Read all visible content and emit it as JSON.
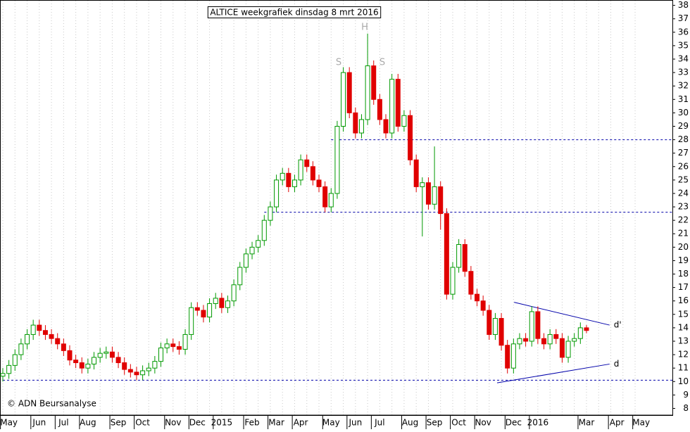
{
  "chart_data": {
    "type": "candlestick",
    "title": "ALTICE weekgrafiek dinsdag 8 mrt 2016",
    "categories": [
      null,
      "May",
      null,
      null,
      null,
      null,
      "Jun",
      null,
      null,
      null,
      "Jul",
      null,
      null,
      null,
      "Aug",
      null,
      null,
      null,
      null,
      "Sep",
      null,
      null,
      null,
      "Oct",
      null,
      null,
      null,
      null,
      "Nov",
      null,
      null,
      null,
      "Dec",
      null,
      null,
      null,
      "2015",
      null,
      null,
      null,
      null,
      "Feb",
      null,
      null,
      null,
      "Mar",
      null,
      null,
      null,
      "Apr",
      null,
      null,
      null,
      null,
      "May",
      null,
      null,
      null,
      "Jun",
      null,
      null,
      null,
      "Jul",
      null,
      null,
      null,
      null,
      "Aug",
      null,
      null,
      null,
      "Sep",
      null,
      null,
      null,
      "Oct",
      null,
      null,
      null,
      "Nov",
      null,
      null,
      null,
      null,
      "Dec",
      null,
      null,
      null,
      "2016",
      null,
      null,
      null,
      null,
      null,
      null,
      null,
      "Mar",
      null,
      null,
      null,
      null,
      "Apr",
      null,
      null,
      null,
      "May"
    ],
    "open": [
      10.4,
      10.6,
      11.2,
      12.0,
      12.8,
      13.5,
      14.2,
      13.8,
      13.5,
      13.2,
      12.8,
      12.3,
      11.6,
      11.4,
      11.0,
      11.3,
      11.8,
      12.1,
      12.2,
      11.8,
      11.4,
      10.9,
      10.7,
      10.5,
      10.8,
      11.0,
      11.5,
      12.5,
      12.8,
      12.6,
      12.4,
      13.5,
      15.5,
      15.3,
      14.8,
      15.8,
      16.2,
      15.5,
      16.0,
      17.2,
      18.5,
      19.5,
      20.0,
      20.5,
      22.0,
      23.0,
      25.0,
      25.5,
      24.5,
      25.0,
      26.5,
      26.0,
      25.0,
      24.5,
      23.0,
      24.0,
      29.0,
      33.0,
      30.0,
      28.5,
      29.5,
      33.5,
      31.0,
      29.5,
      28.5,
      32.5,
      29.0,
      29.8,
      26.5,
      24.5,
      24.8,
      23.2,
      24.5,
      22.5,
      16.5,
      18.5,
      20.2,
      18.2,
      16.5,
      16.0,
      15.3,
      13.5,
      14.7,
      12.7,
      11.0,
      12.8,
      13.2,
      13.0,
      15.2,
      13.2,
      12.8,
      13.5,
      13.2,
      11.8,
      13.0,
      13.2,
      14.0,
      null,
      null,
      null,
      null,
      null,
      null,
      null,
      null,
      null
    ],
    "high": [
      11.0,
      11.6,
      12.4,
      13.2,
      13.9,
      14.6,
      14.6,
      14.2,
      13.9,
      13.6,
      13.2,
      12.7,
      12.0,
      11.8,
      11.7,
      12.2,
      12.5,
      12.6,
      12.6,
      12.2,
      11.8,
      11.3,
      11.1,
      11.2,
      11.4,
      11.9,
      12.9,
      13.2,
      13.2,
      13.0,
      13.9,
      15.9,
      15.9,
      15.7,
      16.2,
      16.6,
      16.6,
      16.4,
      17.6,
      18.9,
      19.9,
      20.4,
      20.9,
      22.4,
      23.4,
      25.4,
      25.9,
      25.9,
      25.4,
      26.9,
      26.9,
      26.4,
      25.4,
      24.9,
      24.4,
      29.4,
      33.4,
      33.4,
      30.4,
      29.9,
      35.9,
      33.9,
      31.4,
      29.9,
      32.9,
      32.9,
      30.2,
      30.2,
      26.9,
      25.2,
      25.2,
      27.5,
      24.9,
      22.9,
      18.9,
      20.6,
      20.6,
      18.6,
      16.9,
      16.4,
      15.7,
      15.1,
      15.1,
      13.1,
      13.2,
      13.6,
      13.6,
      15.6,
      15.6,
      13.6,
      13.9,
      13.9,
      13.6,
      13.4,
      13.6,
      14.4,
      14.2,
      null,
      null,
      null,
      null,
      null,
      null,
      null,
      null,
      null
    ],
    "low": [
      10.0,
      10.2,
      10.8,
      11.6,
      12.4,
      13.1,
      13.4,
      13.1,
      12.8,
      12.4,
      11.9,
      11.2,
      11.0,
      10.6,
      10.6,
      10.9,
      11.4,
      11.7,
      11.4,
      11.0,
      10.5,
      10.3,
      10.1,
      10.1,
      10.4,
      10.6,
      11.1,
      12.1,
      12.2,
      12.0,
      12.0,
      13.1,
      14.9,
      14.4,
      14.4,
      15.4,
      15.1,
      15.1,
      15.6,
      16.8,
      18.1,
      19.1,
      19.6,
      20.1,
      21.6,
      22.6,
      24.6,
      24.1,
      24.1,
      24.6,
      25.6,
      24.6,
      24.1,
      22.6,
      22.6,
      23.6,
      28.6,
      29.6,
      28.1,
      28.1,
      29.1,
      30.6,
      29.1,
      28.1,
      28.1,
      28.6,
      28.6,
      26.1,
      24.1,
      20.8,
      22.8,
      22.8,
      21.3,
      16.1,
      16.1,
      18.1,
      17.8,
      16.1,
      15.6,
      14.9,
      13.1,
      13.1,
      12.3,
      10.6,
      10.6,
      12.4,
      12.6,
      12.6,
      12.8,
      12.4,
      12.4,
      12.8,
      11.4,
      11.4,
      12.6,
      12.8,
      13.6,
      null,
      null,
      null,
      null,
      null,
      null,
      null,
      null,
      null
    ],
    "close": [
      10.6,
      11.2,
      12.0,
      12.8,
      13.5,
      14.2,
      13.8,
      13.5,
      13.2,
      12.8,
      12.3,
      11.6,
      11.4,
      11.0,
      11.3,
      11.8,
      12.1,
      12.2,
      11.8,
      11.4,
      10.9,
      10.7,
      10.5,
      10.8,
      11.0,
      11.5,
      12.5,
      12.8,
      12.6,
      12.4,
      13.5,
      15.5,
      15.3,
      14.8,
      15.8,
      16.2,
      15.5,
      16.0,
      17.2,
      18.5,
      19.5,
      20.0,
      20.5,
      22.0,
      23.0,
      25.0,
      25.5,
      24.5,
      25.0,
      26.5,
      26.0,
      25.0,
      24.5,
      23.0,
      24.0,
      29.0,
      33.0,
      30.0,
      28.5,
      29.5,
      33.5,
      31.0,
      29.5,
      28.5,
      32.5,
      29.0,
      29.8,
      26.5,
      24.5,
      24.8,
      23.2,
      24.5,
      22.5,
      16.5,
      18.5,
      20.2,
      18.2,
      16.5,
      16.0,
      15.3,
      13.5,
      14.7,
      12.7,
      11.0,
      12.8,
      13.2,
      13.0,
      15.2,
      13.2,
      12.8,
      13.5,
      13.2,
      11.8,
      13.0,
      13.2,
      14.0,
      13.8,
      null,
      null,
      null,
      null,
      null,
      null,
      null,
      null,
      null
    ],
    "up_color": "#009900",
    "down_color": "#e00000",
    "line_color": "#0000aa",
    "ylim": [
      7.5,
      38.4
    ],
    "yticks": [
      8,
      9,
      10,
      11,
      12,
      13,
      14,
      15,
      16,
      17,
      18,
      19,
      20,
      21,
      22,
      23,
      24,
      25,
      26,
      27,
      28,
      29,
      30,
      31,
      32,
      33,
      34,
      35,
      36,
      37,
      38
    ],
    "hlines": [
      {
        "y": 28,
        "x0": 54
      },
      {
        "y": 22.6,
        "x0": 43
      },
      {
        "y": 10.1,
        "x0": 0
      }
    ],
    "trendlines": [
      {
        "label": "d'",
        "x": [
          84.1,
          99.8
        ],
        "y": [
          15.9,
          14.2
        ]
      },
      {
        "label": "d",
        "x": [
          81.3,
          99.8
        ],
        "y": [
          9.9,
          11.3
        ]
      }
    ],
    "annotations": [
      "S",
      "H",
      "S"
    ],
    "copyright": "© ADN Beursanalyse"
  }
}
